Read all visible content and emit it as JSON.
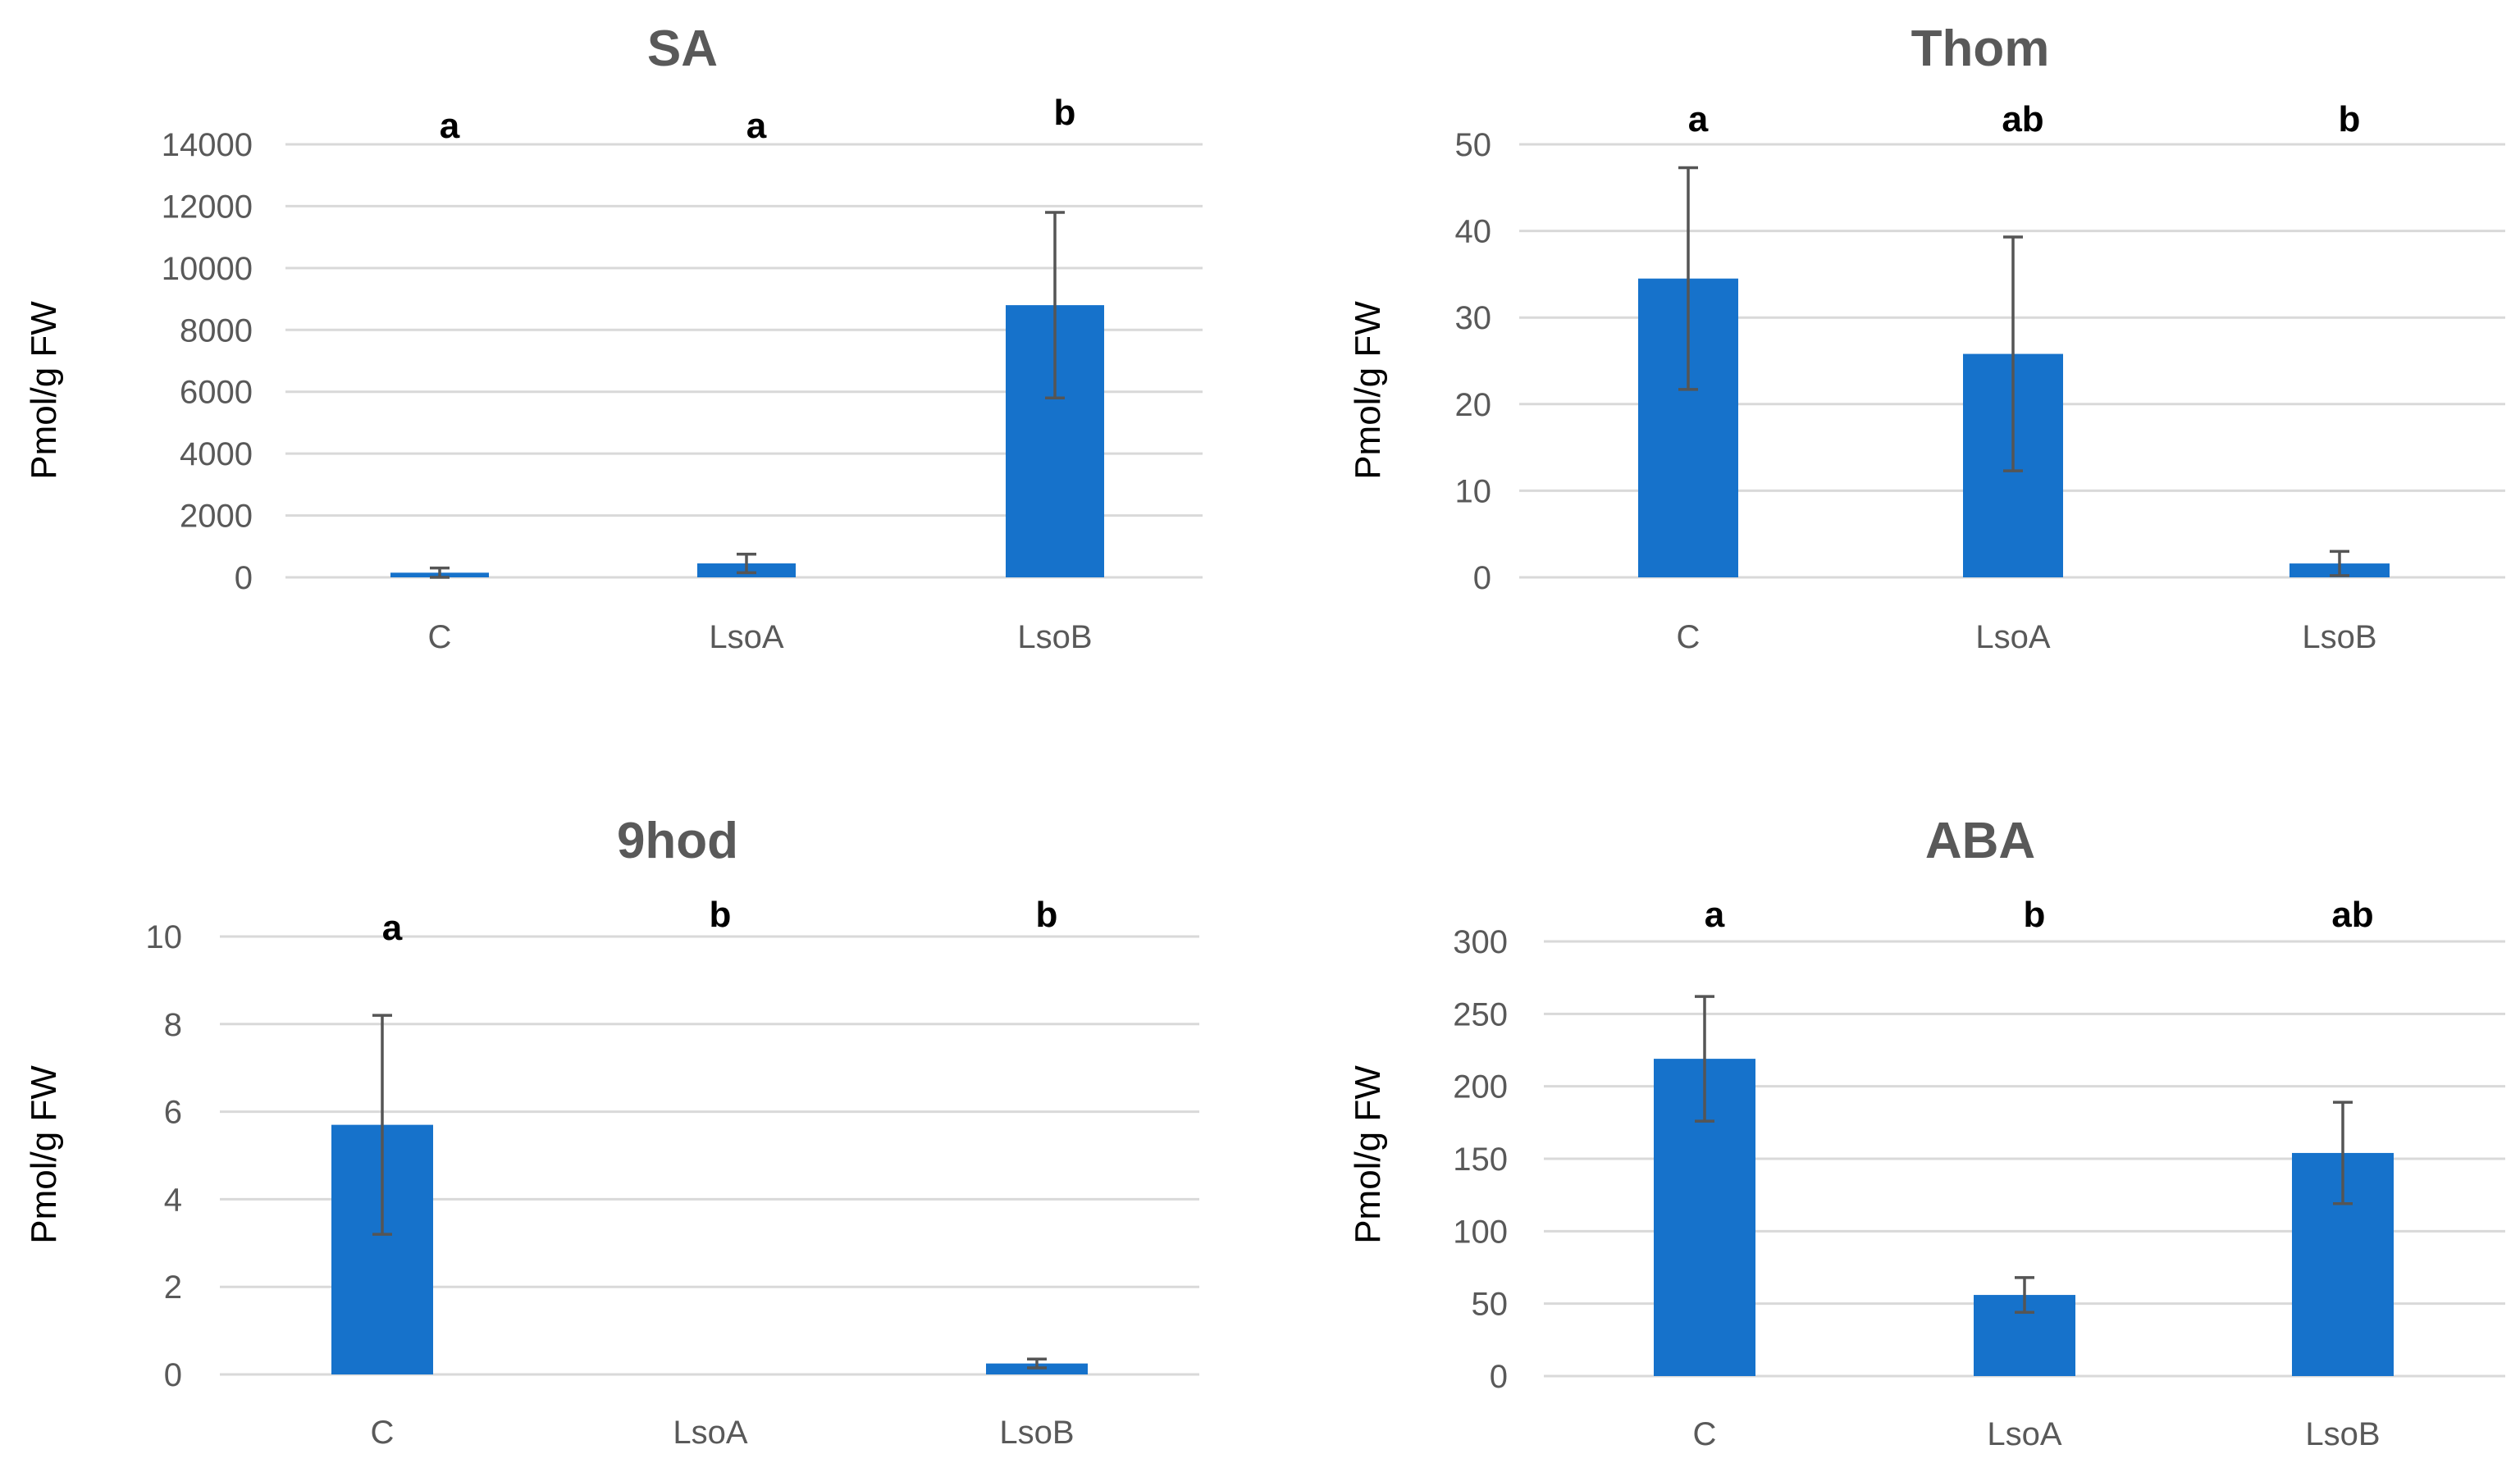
{
  "chart_data": [
    {
      "type": "bar",
      "title": "SA",
      "xlabel": "",
      "ylabel": "Pmol/g FW",
      "ylim": [
        0,
        14000
      ],
      "yticks": [
        0,
        2000,
        4000,
        6000,
        8000,
        10000,
        12000,
        14000
      ],
      "ytick_labels": [
        "0",
        "2000",
        "4000",
        "6000",
        "8000",
        "10000",
        "12000",
        "14000"
      ],
      "grid": true,
      "bar_color": "#1672CB",
      "categories": [
        "C",
        "LsoA",
        "LsoB"
      ],
      "values": [
        150,
        450,
        8800
      ],
      "errors": [
        150,
        300,
        3000
      ],
      "significance": [
        "a",
        "a",
        "b"
      ]
    },
    {
      "type": "bar",
      "title": "Thom",
      "xlabel": "",
      "ylabel": "Pmol/g FW",
      "ylim": [
        0,
        50
      ],
      "yticks": [
        0,
        10,
        20,
        30,
        40,
        50
      ],
      "ytick_labels": [
        "0",
        "10",
        "20",
        "30",
        "40",
        "50"
      ],
      "grid": true,
      "bar_color": "#1672CB",
      "categories": [
        "C",
        "LsoA",
        "LsoB"
      ],
      "values": [
        34.5,
        25.8,
        1.6
      ],
      "errors": [
        12.8,
        13.5,
        1.4
      ],
      "significance": [
        "a",
        "ab",
        "b"
      ]
    },
    {
      "type": "bar",
      "title": "9hod",
      "xlabel": "",
      "ylabel": "Pmol/g FW",
      "ylim": [
        0,
        10
      ],
      "yticks": [
        0,
        2,
        4,
        6,
        8,
        10
      ],
      "ytick_labels": [
        "0",
        "2",
        "4",
        "6",
        "8",
        "10"
      ],
      "grid": true,
      "bar_color": "#1672CB",
      "categories": [
        "C",
        "LsoA",
        "LsoB"
      ],
      "values": [
        5.7,
        0,
        0.25
      ],
      "errors": [
        2.5,
        0,
        0.1
      ],
      "significance": [
        "a",
        "b",
        "b"
      ]
    },
    {
      "type": "bar",
      "title": "ABA",
      "xlabel": "",
      "ylabel": "Pmol/g FW",
      "ylim": [
        0,
        300
      ],
      "yticks": [
        0,
        50,
        100,
        150,
        200,
        250,
        300
      ],
      "ytick_labels": [
        "0",
        "50",
        "100",
        "150",
        "200",
        "250",
        "300"
      ],
      "grid": true,
      "bar_color": "#1672CB",
      "categories": [
        "C",
        "LsoA",
        "LsoB"
      ],
      "values": [
        219,
        56,
        154
      ],
      "errors": [
        43,
        12,
        35
      ],
      "significance": [
        "a",
        "b",
        "ab"
      ]
    }
  ]
}
